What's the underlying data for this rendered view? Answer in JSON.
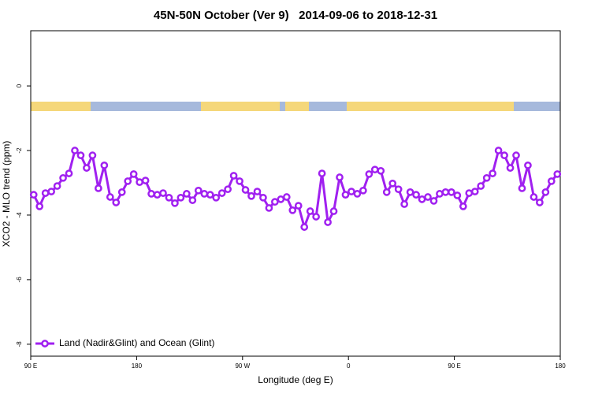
{
  "chart_data": {
    "type": "line",
    "title": "45N-50N October (Ver 9)   2014-09-06 to 2018-12-31",
    "x_label": "Longitude (deg E)",
    "y_label": "XCO2 - MLO trend (ppm)",
    "xlim": [
      90,
      540
    ],
    "ylim": [
      -8.37,
      1.71
    ],
    "xticks": [
      {
        "value": 90,
        "label": "90 E"
      },
      180,
      {
        "value": 270,
        "label": "90 W"
      },
      {
        "value": 360,
        "label": "0"
      },
      {
        "value": 450,
        "label": "90 E"
      },
      {
        "value": 540,
        "label": "180"
      }
    ],
    "yticks": [
      0,
      -2,
      -4,
      -6,
      -8
    ],
    "legend": "bottom-left",
    "x": [
      92.5,
      97.5,
      102.5,
      107.5,
      112.5,
      117.5,
      122.5,
      127.5,
      132.5,
      137.5,
      142.5,
      147.5,
      152.5,
      157.5,
      162.5,
      167.5,
      172.5,
      177.5,
      182.5,
      187.5,
      192.5,
      197.5,
      202.5,
      207.5,
      212.5,
      217.5,
      222.5,
      227.5,
      232.5,
      237.5,
      242.5,
      247.5,
      252.5,
      257.5,
      262.5,
      267.5,
      272.5,
      277.5,
      282.5,
      287.5,
      292.5,
      297.5,
      302.5,
      307.5,
      312.5,
      317.5,
      322.5,
      327.5,
      332.5,
      337.5,
      342.5,
      347.5,
      352.5,
      357.5,
      362.5,
      367.5,
      372.5,
      377.5,
      382.5,
      387.5,
      392.5,
      397.5,
      402.5,
      407.5,
      412.5,
      417.5,
      422.5,
      427.5,
      432.5,
      437.5,
      442.5,
      447.5,
      452.5,
      457.5,
      462.5,
      467.5,
      472.5,
      477.5,
      482.5,
      487.5,
      492.5,
      497.5,
      502.5,
      507.5,
      512.5,
      517.5,
      522.5,
      527.5,
      532.5,
      537.5
    ],
    "series": [
      {
        "name": "Land (Nadir&Glint) and Ocean (Glint)",
        "color": "#a020f0",
        "values": [
          -3.37,
          -3.73,
          -3.32,
          -3.27,
          -3.1,
          -2.85,
          -2.71,
          -2.0,
          -2.15,
          -2.54,
          -2.15,
          -3.17,
          -2.46,
          -3.44,
          -3.61,
          -3.29,
          -2.95,
          -2.73,
          -2.98,
          -2.93,
          -3.34,
          -3.37,
          -3.32,
          -3.46,
          -3.63,
          -3.46,
          -3.34,
          -3.54,
          -3.24,
          -3.34,
          -3.37,
          -3.46,
          -3.32,
          -3.2,
          -2.78,
          -2.95,
          -3.22,
          -3.41,
          -3.27,
          -3.46,
          -3.78,
          -3.59,
          -3.51,
          -3.44,
          -3.85,
          -3.71,
          -4.37,
          -3.88,
          -4.05,
          -2.71,
          -4.22,
          -3.88,
          -2.83,
          -3.37,
          -3.27,
          -3.34,
          -3.24,
          -2.73,
          -2.59,
          -2.63,
          -3.29,
          -3.02,
          -3.2,
          -3.66,
          -3.29,
          -3.37,
          -3.51,
          -3.44,
          -3.56,
          -3.34,
          -3.29,
          -3.29,
          -3.39,
          -3.73,
          -3.32,
          -3.27,
          -3.1,
          -2.85,
          -2.71,
          -2.0,
          -2.15,
          -2.54,
          -2.15,
          -3.17,
          -2.46,
          -3.44,
          -3.61,
          -3.29,
          -2.95,
          -2.73
        ]
      }
    ]
  }
}
